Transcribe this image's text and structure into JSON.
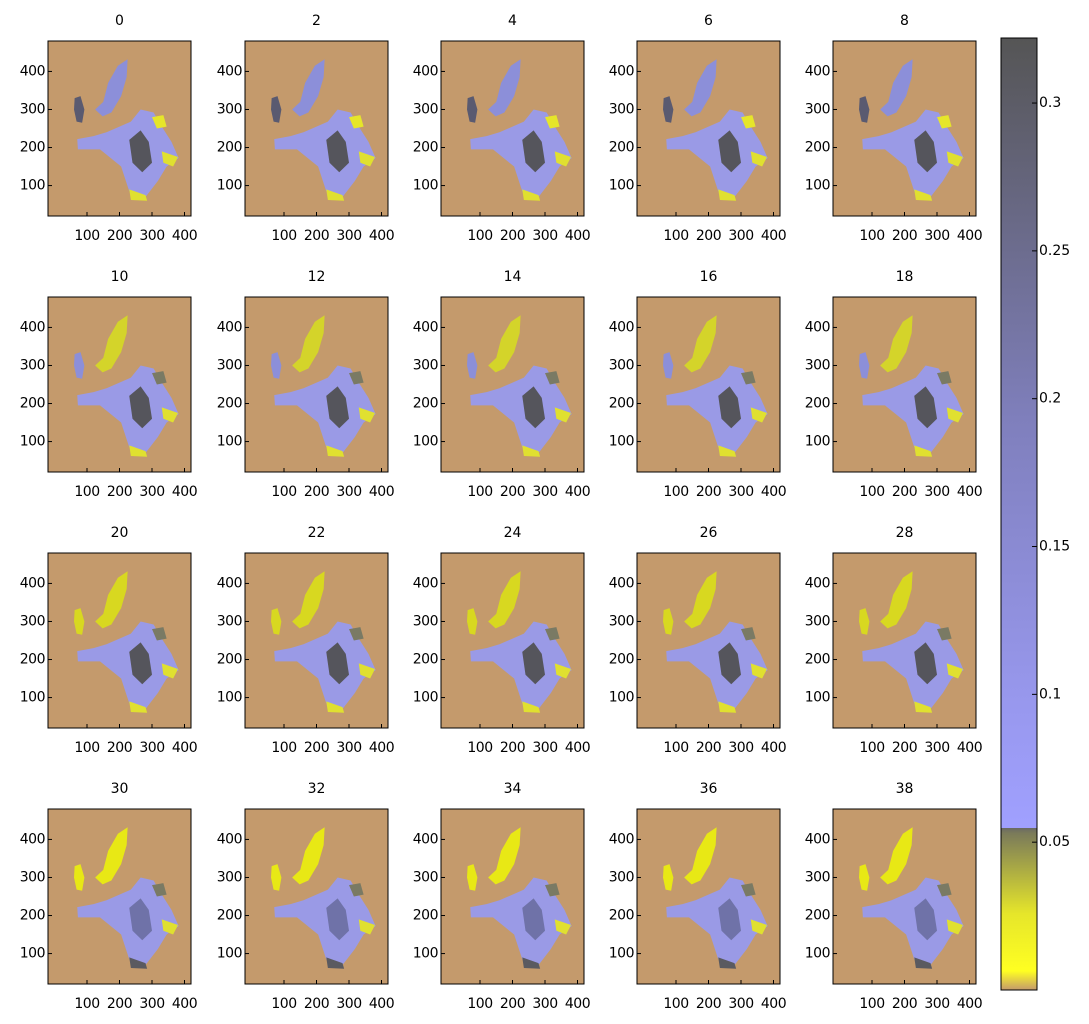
{
  "chart_data": [
    {
      "type": "map",
      "title": "0",
      "xlim": [
        -20,
        420
      ],
      "ylim": [
        20,
        480
      ],
      "xticks": [
        100,
        200,
        300,
        400
      ],
      "yticks": [
        100,
        200,
        300,
        400
      ]
    },
    {
      "type": "map",
      "title": "2",
      "xlim": [
        -20,
        420
      ],
      "ylim": [
        20,
        480
      ],
      "xticks": [
        100,
        200,
        300,
        400
      ],
      "yticks": [
        100,
        200,
        300,
        400
      ]
    },
    {
      "type": "map",
      "title": "4",
      "xlim": [
        -20,
        420
      ],
      "ylim": [
        20,
        480
      ],
      "xticks": [
        100,
        200,
        300,
        400
      ],
      "yticks": [
        100,
        200,
        300,
        400
      ]
    },
    {
      "type": "map",
      "title": "6",
      "xlim": [
        -20,
        420
      ],
      "ylim": [
        20,
        480
      ],
      "xticks": [
        100,
        200,
        300,
        400
      ],
      "yticks": [
        100,
        200,
        300,
        400
      ]
    },
    {
      "type": "map",
      "title": "8",
      "xlim": [
        -20,
        420
      ],
      "ylim": [
        20,
        480
      ],
      "xticks": [
        100,
        200,
        300,
        400
      ],
      "yticks": [
        100,
        200,
        300,
        400
      ]
    },
    {
      "type": "map",
      "title": "10",
      "xlim": [
        -20,
        420
      ],
      "ylim": [
        20,
        480
      ],
      "xticks": [
        100,
        200,
        300,
        400
      ],
      "yticks": [
        100,
        200,
        300,
        400
      ]
    },
    {
      "type": "map",
      "title": "12",
      "xlim": [
        -20,
        420
      ],
      "ylim": [
        20,
        480
      ],
      "xticks": [
        100,
        200,
        300,
        400
      ],
      "yticks": [
        100,
        200,
        300,
        400
      ]
    },
    {
      "type": "map",
      "title": "14",
      "xlim": [
        -20,
        420
      ],
      "ylim": [
        20,
        480
      ],
      "xticks": [
        100,
        200,
        300,
        400
      ],
      "yticks": [
        100,
        200,
        300,
        400
      ]
    },
    {
      "type": "map",
      "title": "16",
      "xlim": [
        -20,
        420
      ],
      "ylim": [
        20,
        480
      ],
      "xticks": [
        100,
        200,
        300,
        400
      ],
      "yticks": [
        100,
        200,
        300,
        400
      ]
    },
    {
      "type": "map",
      "title": "18",
      "xlim": [
        -20,
        420
      ],
      "ylim": [
        20,
        480
      ],
      "xticks": [
        100,
        200,
        300,
        400
      ],
      "yticks": [
        100,
        200,
        300,
        400
      ]
    },
    {
      "type": "map",
      "title": "20",
      "xlim": [
        -20,
        420
      ],
      "ylim": [
        20,
        480
      ],
      "xticks": [
        100,
        200,
        300,
        400
      ],
      "yticks": [
        100,
        200,
        300,
        400
      ]
    },
    {
      "type": "map",
      "title": "22",
      "xlim": [
        -20,
        420
      ],
      "ylim": [
        20,
        480
      ],
      "xticks": [
        100,
        200,
        300,
        400
      ],
      "yticks": [
        100,
        200,
        300,
        400
      ]
    },
    {
      "type": "map",
      "title": "24",
      "xlim": [
        -20,
        420
      ],
      "ylim": [
        20,
        480
      ],
      "xticks": [
        100,
        200,
        300,
        400
      ],
      "yticks": [
        100,
        200,
        300,
        400
      ]
    },
    {
      "type": "map",
      "title": "26",
      "xlim": [
        -20,
        420
      ],
      "ylim": [
        20,
        480
      ],
      "xticks": [
        100,
        200,
        300,
        400
      ],
      "yticks": [
        100,
        200,
        300,
        400
      ]
    },
    {
      "type": "map",
      "title": "28",
      "xlim": [
        -20,
        420
      ],
      "ylim": [
        20,
        480
      ],
      "xticks": [
        100,
        200,
        300,
        400
      ],
      "yticks": [
        100,
        200,
        300,
        400
      ]
    },
    {
      "type": "map",
      "title": "30",
      "xlim": [
        -20,
        420
      ],
      "ylim": [
        20,
        480
      ],
      "xticks": [
        100,
        200,
        300,
        400
      ],
      "yticks": [
        100,
        200,
        300,
        400
      ]
    },
    {
      "type": "map",
      "title": "32",
      "xlim": [
        -20,
        420
      ],
      "ylim": [
        20,
        480
      ],
      "xticks": [
        100,
        200,
        300,
        400
      ],
      "yticks": [
        100,
        200,
        300,
        400
      ]
    },
    {
      "type": "map",
      "title": "34",
      "xlim": [
        -20,
        420
      ],
      "ylim": [
        20,
        480
      ],
      "xticks": [
        100,
        200,
        300,
        400
      ],
      "yticks": [
        100,
        200,
        300,
        400
      ]
    },
    {
      "type": "map",
      "title": "36",
      "xlim": [
        -20,
        420
      ],
      "ylim": [
        20,
        480
      ],
      "xticks": [
        100,
        200,
        300,
        400
      ],
      "yticks": [
        100,
        200,
        300,
        400
      ]
    },
    {
      "type": "map",
      "title": "38",
      "xlim": [
        -20,
        420
      ],
      "ylim": [
        20,
        480
      ],
      "xticks": [
        100,
        200,
        300,
        400
      ],
      "yticks": [
        100,
        200,
        300,
        400
      ]
    },
    {
      "type": "colorbar",
      "ylim": [
        0,
        0.322
      ],
      "yticks": [
        0.05,
        0.1,
        0.15,
        0.2,
        0.25,
        0.3
      ]
    }
  ]
}
